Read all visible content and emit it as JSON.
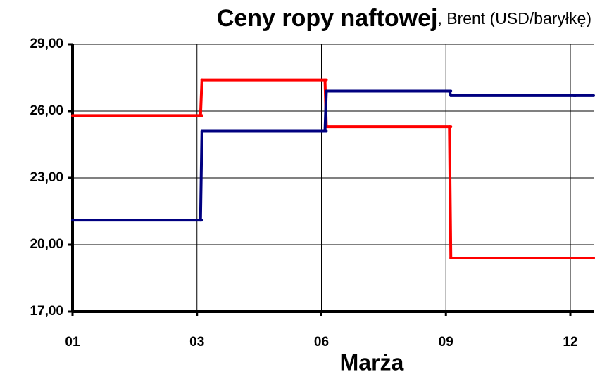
{
  "chart_data": {
    "type": "line",
    "step": true,
    "title": "Ceny ropy naftowej",
    "subtitle": ", Brent (USD/baryłkę)",
    "x_label": "Marża",
    "categories": [
      "01",
      "03",
      "06",
      "09",
      "12"
    ],
    "series": [
      {
        "color": "#ff0000",
        "values": [
          25.8,
          27.4,
          25.3,
          19.4,
          19.4
        ]
      },
      {
        "color": "#000080",
        "values": [
          21.1,
          25.1,
          26.9,
          26.7,
          26.7
        ]
      }
    ],
    "ylim": [
      17,
      29
    ],
    "yticks": [
      {
        "value": 17,
        "label": "17,00"
      },
      {
        "value": 20,
        "label": "20,00"
      },
      {
        "value": 23,
        "label": "23,00"
      },
      {
        "value": 26,
        "label": "26,00"
      },
      {
        "value": 29,
        "label": "29,00"
      }
    ],
    "grid": true
  }
}
